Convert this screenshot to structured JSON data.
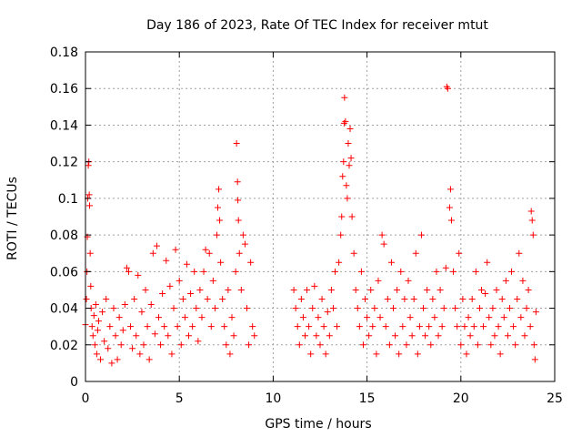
{
  "chart_data": {
    "type": "scatter",
    "title": "Day 186 of 2023, Rate Of TEC Index for receiver mtut",
    "xlabel": "GPS time / hours",
    "ylabel": "ROTI / TECUs",
    "xlim": [
      0,
      25
    ],
    "ylim": [
      0,
      0.18
    ],
    "x_ticks": [
      "0",
      "5",
      "10",
      "15",
      "20",
      "25"
    ],
    "y_ticks": [
      "0",
      "0.02",
      "0.04",
      "0.06",
      "0.08",
      "0.1",
      "0.12",
      "0.14",
      "0.16",
      "0.18"
    ],
    "grid": true,
    "marker": "plus",
    "series": [
      {
        "color": "#ff0000",
        "points": [
          [
            0.0,
            0.031
          ],
          [
            0.05,
            0.045
          ],
          [
            0.08,
            0.06
          ],
          [
            0.1,
            0.079
          ],
          [
            0.12,
            0.1
          ],
          [
            0.15,
            0.118
          ],
          [
            0.18,
            0.12
          ],
          [
            0.2,
            0.102
          ],
          [
            0.22,
            0.096
          ],
          [
            0.25,
            0.07
          ],
          [
            0.28,
            0.052
          ],
          [
            0.3,
            0.04
          ],
          [
            0.35,
            0.03
          ],
          [
            0.4,
            0.025
          ],
          [
            0.45,
            0.036
          ],
          [
            0.5,
            0.02
          ],
          [
            0.55,
            0.042
          ],
          [
            0.6,
            0.015
          ],
          [
            0.65,
            0.028
          ],
          [
            0.7,
            0.033
          ],
          [
            0.8,
            0.012
          ],
          [
            0.9,
            0.038
          ],
          [
            1.0,
            0.022
          ],
          [
            1.1,
            0.045
          ],
          [
            1.2,
            0.018
          ],
          [
            1.3,
            0.03
          ],
          [
            1.4,
            0.01
          ],
          [
            1.5,
            0.04
          ],
          [
            1.6,
            0.025
          ],
          [
            1.7,
            0.012
          ],
          [
            1.8,
            0.035
          ],
          [
            1.9,
            0.02
          ],
          [
            2.0,
            0.028
          ],
          [
            2.1,
            0.042
          ],
          [
            2.2,
            0.062
          ],
          [
            2.3,
            0.06
          ],
          [
            2.4,
            0.03
          ],
          [
            2.5,
            0.018
          ],
          [
            2.6,
            0.045
          ],
          [
            2.7,
            0.025
          ],
          [
            2.8,
            0.058
          ],
          [
            2.9,
            0.015
          ],
          [
            3.0,
            0.038
          ],
          [
            3.1,
            0.02
          ],
          [
            3.2,
            0.05
          ],
          [
            3.3,
            0.03
          ],
          [
            3.4,
            0.012
          ],
          [
            3.5,
            0.042
          ],
          [
            3.6,
            0.07
          ],
          [
            3.7,
            0.026
          ],
          [
            3.8,
            0.074
          ],
          [
            3.9,
            0.035
          ],
          [
            4.0,
            0.02
          ],
          [
            4.1,
            0.048
          ],
          [
            4.2,
            0.03
          ],
          [
            4.3,
            0.066
          ],
          [
            4.4,
            0.025
          ],
          [
            4.5,
            0.052
          ],
          [
            4.6,
            0.015
          ],
          [
            4.7,
            0.04
          ],
          [
            4.8,
            0.072
          ],
          [
            4.9,
            0.03
          ],
          [
            5.0,
            0.055
          ],
          [
            5.1,
            0.02
          ],
          [
            5.2,
            0.045
          ],
          [
            5.3,
            0.035
          ],
          [
            5.4,
            0.064
          ],
          [
            5.5,
            0.025
          ],
          [
            5.6,
            0.048
          ],
          [
            5.7,
            0.03
          ],
          [
            5.8,
            0.06
          ],
          [
            5.9,
            0.04
          ],
          [
            6.0,
            0.022
          ],
          [
            6.1,
            0.05
          ],
          [
            6.2,
            0.035
          ],
          [
            6.3,
            0.06
          ],
          [
            6.4,
            0.072
          ],
          [
            6.5,
            0.045
          ],
          [
            6.6,
            0.07
          ],
          [
            6.7,
            0.03
          ],
          [
            6.8,
            0.055
          ],
          [
            6.9,
            0.04
          ],
          [
            7.0,
            0.08
          ],
          [
            7.05,
            0.095
          ],
          [
            7.1,
            0.105
          ],
          [
            7.15,
            0.088
          ],
          [
            7.2,
            0.065
          ],
          [
            7.3,
            0.045
          ],
          [
            7.4,
            0.03
          ],
          [
            7.5,
            0.02
          ],
          [
            7.6,
            0.05
          ],
          [
            7.7,
            0.015
          ],
          [
            7.8,
            0.035
          ],
          [
            7.9,
            0.025
          ],
          [
            8.0,
            0.06
          ],
          [
            8.05,
            0.13
          ],
          [
            8.1,
            0.109
          ],
          [
            8.12,
            0.099
          ],
          [
            8.15,
            0.088
          ],
          [
            8.2,
            0.07
          ],
          [
            8.3,
            0.05
          ],
          [
            8.4,
            0.08
          ],
          [
            8.5,
            0.075
          ],
          [
            8.6,
            0.04
          ],
          [
            8.7,
            0.02
          ],
          [
            8.8,
            0.065
          ],
          [
            8.9,
            0.03
          ],
          [
            9.0,
            0.025
          ],
          [
            11.1,
            0.05
          ],
          [
            11.2,
            0.04
          ],
          [
            11.3,
            0.03
          ],
          [
            11.4,
            0.02
          ],
          [
            11.5,
            0.045
          ],
          [
            11.6,
            0.035
          ],
          [
            11.7,
            0.025
          ],
          [
            11.8,
            0.05
          ],
          [
            11.9,
            0.03
          ],
          [
            12.0,
            0.015
          ],
          [
            12.1,
            0.04
          ],
          [
            12.2,
            0.052
          ],
          [
            12.3,
            0.025
          ],
          [
            12.4,
            0.035
          ],
          [
            12.5,
            0.02
          ],
          [
            12.6,
            0.045
          ],
          [
            12.7,
            0.03
          ],
          [
            12.8,
            0.015
          ],
          [
            12.9,
            0.038
          ],
          [
            13.0,
            0.025
          ],
          [
            13.1,
            0.05
          ],
          [
            13.2,
            0.04
          ],
          [
            13.3,
            0.06
          ],
          [
            13.4,
            0.03
          ],
          [
            13.5,
            0.065
          ],
          [
            13.6,
            0.08
          ],
          [
            13.65,
            0.09
          ],
          [
            13.7,
            0.112
          ],
          [
            13.75,
            0.12
          ],
          [
            13.78,
            0.141
          ],
          [
            13.8,
            0.155
          ],
          [
            13.85,
            0.142
          ],
          [
            13.9,
            0.107
          ],
          [
            13.95,
            0.1
          ],
          [
            14.0,
            0.13
          ],
          [
            14.05,
            0.118
          ],
          [
            14.1,
            0.138
          ],
          [
            14.15,
            0.122
          ],
          [
            14.2,
            0.09
          ],
          [
            14.3,
            0.07
          ],
          [
            14.4,
            0.05
          ],
          [
            14.5,
            0.04
          ],
          [
            14.6,
            0.03
          ],
          [
            14.7,
            0.06
          ],
          [
            14.8,
            0.02
          ],
          [
            14.9,
            0.045
          ],
          [
            15.0,
            0.035
          ],
          [
            15.1,
            0.025
          ],
          [
            15.2,
            0.05
          ],
          [
            15.3,
            0.03
          ],
          [
            15.4,
            0.04
          ],
          [
            15.5,
            0.015
          ],
          [
            15.6,
            0.055
          ],
          [
            15.7,
            0.035
          ],
          [
            15.8,
            0.08
          ],
          [
            15.9,
            0.075
          ],
          [
            16.0,
            0.03
          ],
          [
            16.1,
            0.045
          ],
          [
            16.2,
            0.02
          ],
          [
            16.3,
            0.065
          ],
          [
            16.4,
            0.04
          ],
          [
            16.5,
            0.025
          ],
          [
            16.6,
            0.05
          ],
          [
            16.7,
            0.015
          ],
          [
            16.8,
            0.06
          ],
          [
            16.9,
            0.03
          ],
          [
            17.0,
            0.045
          ],
          [
            17.1,
            0.02
          ],
          [
            17.2,
            0.055
          ],
          [
            17.3,
            0.035
          ],
          [
            17.4,
            0.025
          ],
          [
            17.5,
            0.045
          ],
          [
            17.6,
            0.07
          ],
          [
            17.7,
            0.015
          ],
          [
            17.8,
            0.03
          ],
          [
            17.9,
            0.08
          ],
          [
            18.0,
            0.04
          ],
          [
            18.1,
            0.025
          ],
          [
            18.2,
            0.05
          ],
          [
            18.3,
            0.03
          ],
          [
            18.4,
            0.02
          ],
          [
            18.5,
            0.045
          ],
          [
            18.6,
            0.035
          ],
          [
            18.7,
            0.06
          ],
          [
            18.8,
            0.025
          ],
          [
            18.9,
            0.05
          ],
          [
            19.0,
            0.03
          ],
          [
            19.1,
            0.04
          ],
          [
            19.2,
            0.062
          ],
          [
            19.25,
            0.161
          ],
          [
            19.3,
            0.16
          ],
          [
            19.4,
            0.095
          ],
          [
            19.45,
            0.105
          ],
          [
            19.5,
            0.088
          ],
          [
            19.6,
            0.06
          ],
          [
            19.7,
            0.04
          ],
          [
            19.8,
            0.03
          ],
          [
            19.9,
            0.07
          ],
          [
            20.0,
            0.02
          ],
          [
            20.1,
            0.045
          ],
          [
            20.2,
            0.03
          ],
          [
            20.3,
            0.015
          ],
          [
            20.4,
            0.035
          ],
          [
            20.5,
            0.025
          ],
          [
            20.6,
            0.045
          ],
          [
            20.7,
            0.03
          ],
          [
            20.8,
            0.06
          ],
          [
            20.9,
            0.02
          ],
          [
            21.0,
            0.04
          ],
          [
            21.1,
            0.05
          ],
          [
            21.2,
            0.03
          ],
          [
            21.3,
            0.048
          ],
          [
            21.4,
            0.065
          ],
          [
            21.5,
            0.035
          ],
          [
            21.6,
            0.02
          ],
          [
            21.7,
            0.04
          ],
          [
            21.8,
            0.025
          ],
          [
            21.9,
            0.05
          ],
          [
            22.0,
            0.03
          ],
          [
            22.1,
            0.015
          ],
          [
            22.2,
            0.045
          ],
          [
            22.3,
            0.035
          ],
          [
            22.4,
            0.055
          ],
          [
            22.5,
            0.025
          ],
          [
            22.6,
            0.04
          ],
          [
            22.7,
            0.06
          ],
          [
            22.8,
            0.03
          ],
          [
            22.9,
            0.02
          ],
          [
            23.0,
            0.045
          ],
          [
            23.1,
            0.07
          ],
          [
            23.2,
            0.035
          ],
          [
            23.3,
            0.055
          ],
          [
            23.4,
            0.025
          ],
          [
            23.5,
            0.04
          ],
          [
            23.6,
            0.05
          ],
          [
            23.7,
            0.03
          ],
          [
            23.75,
            0.093
          ],
          [
            23.8,
            0.088
          ],
          [
            23.85,
            0.08
          ],
          [
            23.9,
            0.02
          ],
          [
            23.95,
            0.012
          ],
          [
            24.0,
            0.038
          ]
        ]
      }
    ]
  }
}
